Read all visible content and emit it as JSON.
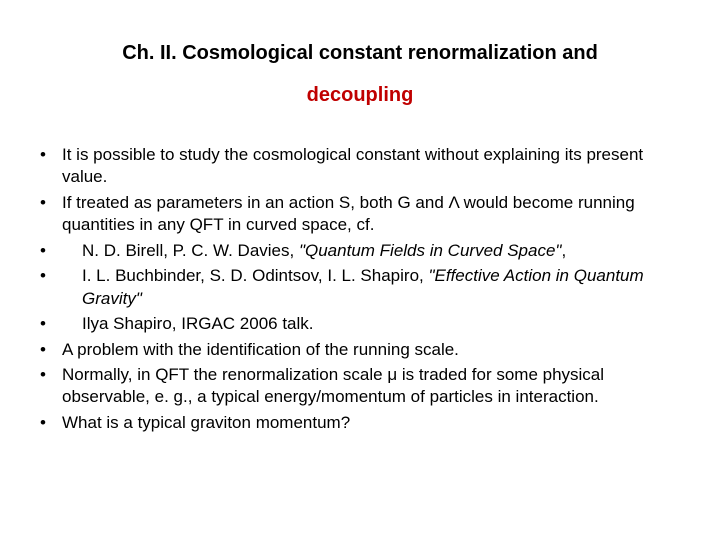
{
  "title": {
    "line1": "Ch. II. Cosmological constant renormalization and",
    "line2": "decoupling",
    "line1_color": "#000000",
    "line2_color": "#c00000",
    "fontsize": 20,
    "fontweight": "bold"
  },
  "bullets": {
    "b0": "It is possible to study the cosmological constant without explaining its present value.",
    "b1": "If treated as parameters in an action S, both G and Λ would become running quantities in any QFT in curved space, cf.",
    "b2": {
      "pre": "N. D. Birell, P. C. W. Davies, ",
      "ital": "\"Quantum Fields in Curved Space\"",
      "post": ","
    },
    "b3": {
      "pre": "I. L. Buchbinder, S. D. Odintsov, I. L. Shapiro, ",
      "ital": "\"Effective Action in Quantum Gravity\"",
      "post": ""
    },
    "b4": "Ilya Shapiro, IRGAC 2006 talk.",
    "b5": "A problem with the identification of the running scale.",
    "b6": "Normally, in QFT the renormalization scale μ is traded for some physical observable, e. g., a typical energy/momentum of particles in interaction.",
    "b7": "What is a typical graviton momentum?"
  },
  "style": {
    "body_fontsize": 17,
    "body_color": "#000000",
    "bullet_marker_color": "#000000",
    "background_color": "#ffffff"
  }
}
